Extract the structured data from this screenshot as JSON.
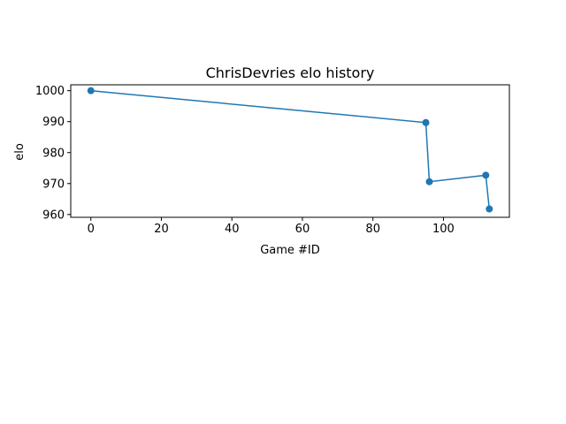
{
  "chart_data": {
    "type": "line",
    "title": "ChrisDevries elo history",
    "xlabel": "Game #ID",
    "ylabel": "elo",
    "xlim": [
      -5.7,
      118.7
    ],
    "ylim": [
      959.1,
      1001.9
    ],
    "xticks": [
      0,
      20,
      40,
      60,
      80,
      100
    ],
    "yticks": [
      960,
      970,
      980,
      990,
      1000
    ],
    "grid": false,
    "series": [
      {
        "color": "#1f77b4",
        "x": [
          0,
          95,
          96,
          112,
          113
        ],
        "y": [
          1000,
          989.7,
          970.6,
          972.7,
          961.8
        ]
      }
    ]
  }
}
